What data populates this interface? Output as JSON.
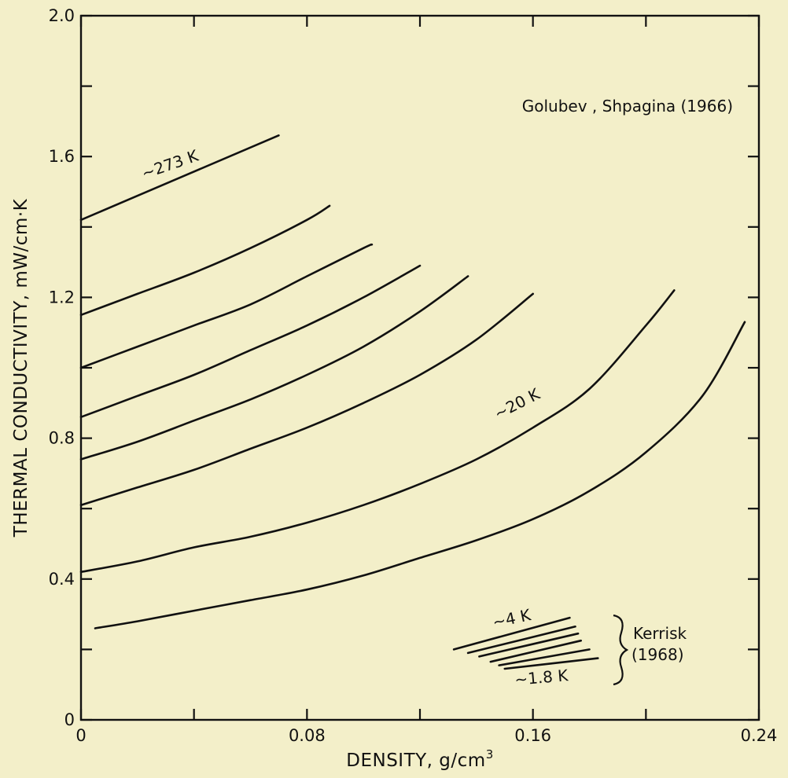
{
  "chart_data": {
    "type": "line",
    "xlabel": "DENSITY, g/cm",
    "xlabel_sup": "3",
    "ylabel": "THERMAL CONDUCTIVITY, mW/cm·K",
    "xlim": [
      0,
      0.24
    ],
    "ylim": [
      0,
      2.0
    ],
    "x_ticks": [
      0,
      0.04,
      0.08,
      0.12,
      0.16,
      0.2,
      0.24
    ],
    "x_tick_labels": [
      "0",
      "",
      "0.08",
      "",
      "0.16",
      "",
      "0.24"
    ],
    "y_ticks": [
      0,
      0.2,
      0.4,
      0.6,
      0.8,
      1.0,
      1.2,
      1.4,
      1.6,
      1.8,
      2.0
    ],
    "y_tick_labels": [
      "0",
      "",
      "0.4",
      "",
      "0.8",
      "",
      "1.2",
      "",
      "1.6",
      "",
      "2.0"
    ],
    "grid": false,
    "legend": "none",
    "source_label": "Golubev , Shpagina  (1966)",
    "kerrisk_label_line1": "Kerrisk",
    "kerrisk_label_line2": "(1968)",
    "series": [
      {
        "label": "~273 K",
        "x": [
          0.0,
          0.07
        ],
        "y": [
          1.42,
          1.66
        ]
      },
      {
        "x": [
          0.0,
          0.02,
          0.04,
          0.06,
          0.08,
          0.088
        ],
        "y": [
          1.15,
          1.21,
          1.27,
          1.34,
          1.42,
          1.46
        ]
      },
      {
        "x": [
          0.0,
          0.02,
          0.04,
          0.06,
          0.08,
          0.1,
          0.103
        ],
        "y": [
          1.0,
          1.06,
          1.12,
          1.18,
          1.26,
          1.34,
          1.35
        ]
      },
      {
        "x": [
          0.0,
          0.02,
          0.04,
          0.06,
          0.08,
          0.1,
          0.12
        ],
        "y": [
          0.86,
          0.92,
          0.98,
          1.05,
          1.12,
          1.2,
          1.29
        ]
      },
      {
        "x": [
          0.0,
          0.02,
          0.04,
          0.06,
          0.08,
          0.1,
          0.12,
          0.137
        ],
        "y": [
          0.74,
          0.79,
          0.85,
          0.91,
          0.98,
          1.06,
          1.16,
          1.26
        ]
      },
      {
        "x": [
          0.0,
          0.02,
          0.04,
          0.06,
          0.08,
          0.1,
          0.12,
          0.14,
          0.16
        ],
        "y": [
          0.61,
          0.66,
          0.71,
          0.77,
          0.83,
          0.9,
          0.98,
          1.08,
          1.21
        ]
      },
      {
        "label": "~20 K",
        "x": [
          0.0,
          0.02,
          0.04,
          0.06,
          0.08,
          0.1,
          0.12,
          0.14,
          0.16,
          0.18,
          0.2,
          0.21
        ],
        "y": [
          0.42,
          0.45,
          0.49,
          0.52,
          0.56,
          0.61,
          0.67,
          0.74,
          0.83,
          0.94,
          1.12,
          1.22
        ]
      },
      {
        "x": [
          0.005,
          0.02,
          0.04,
          0.06,
          0.08,
          0.1,
          0.12,
          0.14,
          0.16,
          0.18,
          0.2,
          0.22,
          0.235
        ],
        "y": [
          0.26,
          0.28,
          0.31,
          0.34,
          0.37,
          0.41,
          0.46,
          0.51,
          0.57,
          0.65,
          0.76,
          0.92,
          1.13
        ]
      },
      {
        "label": "~4 K",
        "x": [
          0.132,
          0.173
        ],
        "y": [
          0.2,
          0.29
        ]
      },
      {
        "x": [
          0.137,
          0.175
        ],
        "y": [
          0.19,
          0.265
        ]
      },
      {
        "x": [
          0.141,
          0.176
        ],
        "y": [
          0.18,
          0.245
        ]
      },
      {
        "x": [
          0.145,
          0.177
        ],
        "y": [
          0.165,
          0.225
        ]
      },
      {
        "x": [
          0.148,
          0.18
        ],
        "y": [
          0.155,
          0.2
        ]
      },
      {
        "label": "~1.8 K",
        "x": [
          0.15,
          0.183
        ],
        "y": [
          0.145,
          0.175
        ]
      }
    ]
  }
}
